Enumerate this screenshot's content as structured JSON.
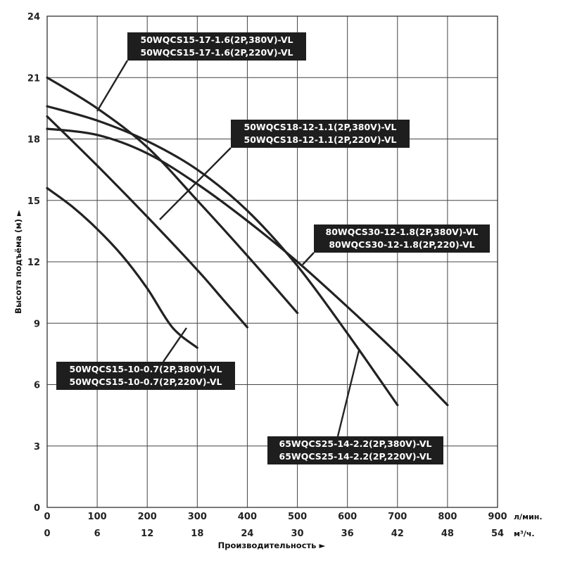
{
  "chart_data": {
    "type": "line",
    "xlabel": "Производительность ►",
    "ylabel": "Высота подъёма (м) ►",
    "x_unit": "л/мин.",
    "x2_unit": "м³/ч.",
    "xlim": [
      0,
      900
    ],
    "ylim": [
      0,
      24
    ],
    "x_ticks": [
      0,
      100,
      200,
      300,
      400,
      500,
      600,
      700,
      800,
      900
    ],
    "x2_ticks": [
      0,
      6,
      12,
      18,
      24,
      30,
      36,
      42,
      48,
      54
    ],
    "y_ticks": [
      0,
      3,
      6,
      9,
      12,
      15,
      18,
      21,
      24
    ],
    "grid": true,
    "series": [
      {
        "x": [
          0,
          50,
          100,
          150,
          200,
          250,
          300
        ],
        "y": [
          15.6,
          14.7,
          13.6,
          12.3,
          10.7,
          8.8,
          7.8
        ]
      },
      {
        "x": [
          0,
          100,
          200,
          300,
          350,
          400
        ],
        "y": [
          19.1,
          16.7,
          14.2,
          11.6,
          10.2,
          8.8
        ]
      },
      {
        "x": [
          0,
          100,
          200,
          300,
          400,
          500
        ],
        "y": [
          21.0,
          19.5,
          17.6,
          15.0,
          12.3,
          9.5
        ]
      },
      {
        "x": [
          0,
          100,
          200,
          300,
          400,
          500,
          600,
          700
        ],
        "y": [
          19.6,
          18.9,
          17.9,
          16.5,
          14.5,
          11.8,
          8.5,
          5.0
        ]
      },
      {
        "x": [
          0,
          100,
          200,
          300,
          400,
          500,
          600,
          700,
          800
        ],
        "y": [
          18.5,
          18.2,
          17.3,
          15.8,
          14.0,
          12.0,
          9.8,
          7.5,
          5.0
        ]
      }
    ],
    "labels": [
      {
        "lines": [
          "50WQCS15-17-1.6(2P,380V)-VL",
          "50WQCS15-17-1.6(2P,220V)-VL"
        ]
      },
      {
        "lines": [
          "50WQCS18-12-1.1(2P,380V)-VL",
          "50WQCS18-12-1.1(2P,220V)-VL"
        ]
      },
      {
        "lines": [
          "80WQCS30-12-1.8(2P,380V)-VL",
          "80WQCS30-12-1.8(2P,220)-VL"
        ]
      },
      {
        "lines": [
          "50WQCS15-10-0.7(2P,380V)-VL",
          "50WQCS15-10-0.7(2P,220V)-VL"
        ]
      },
      {
        "lines": [
          "65WQCS25-14-2.2(2P,380V)-VL",
          "65WQCS25-14-2.2(2P,220V)-VL"
        ]
      }
    ],
    "colors": {
      "curve": "#222222",
      "grid": "#444444",
      "label_bg": "#1e1e1e",
      "label_text": "#ffffff"
    }
  }
}
